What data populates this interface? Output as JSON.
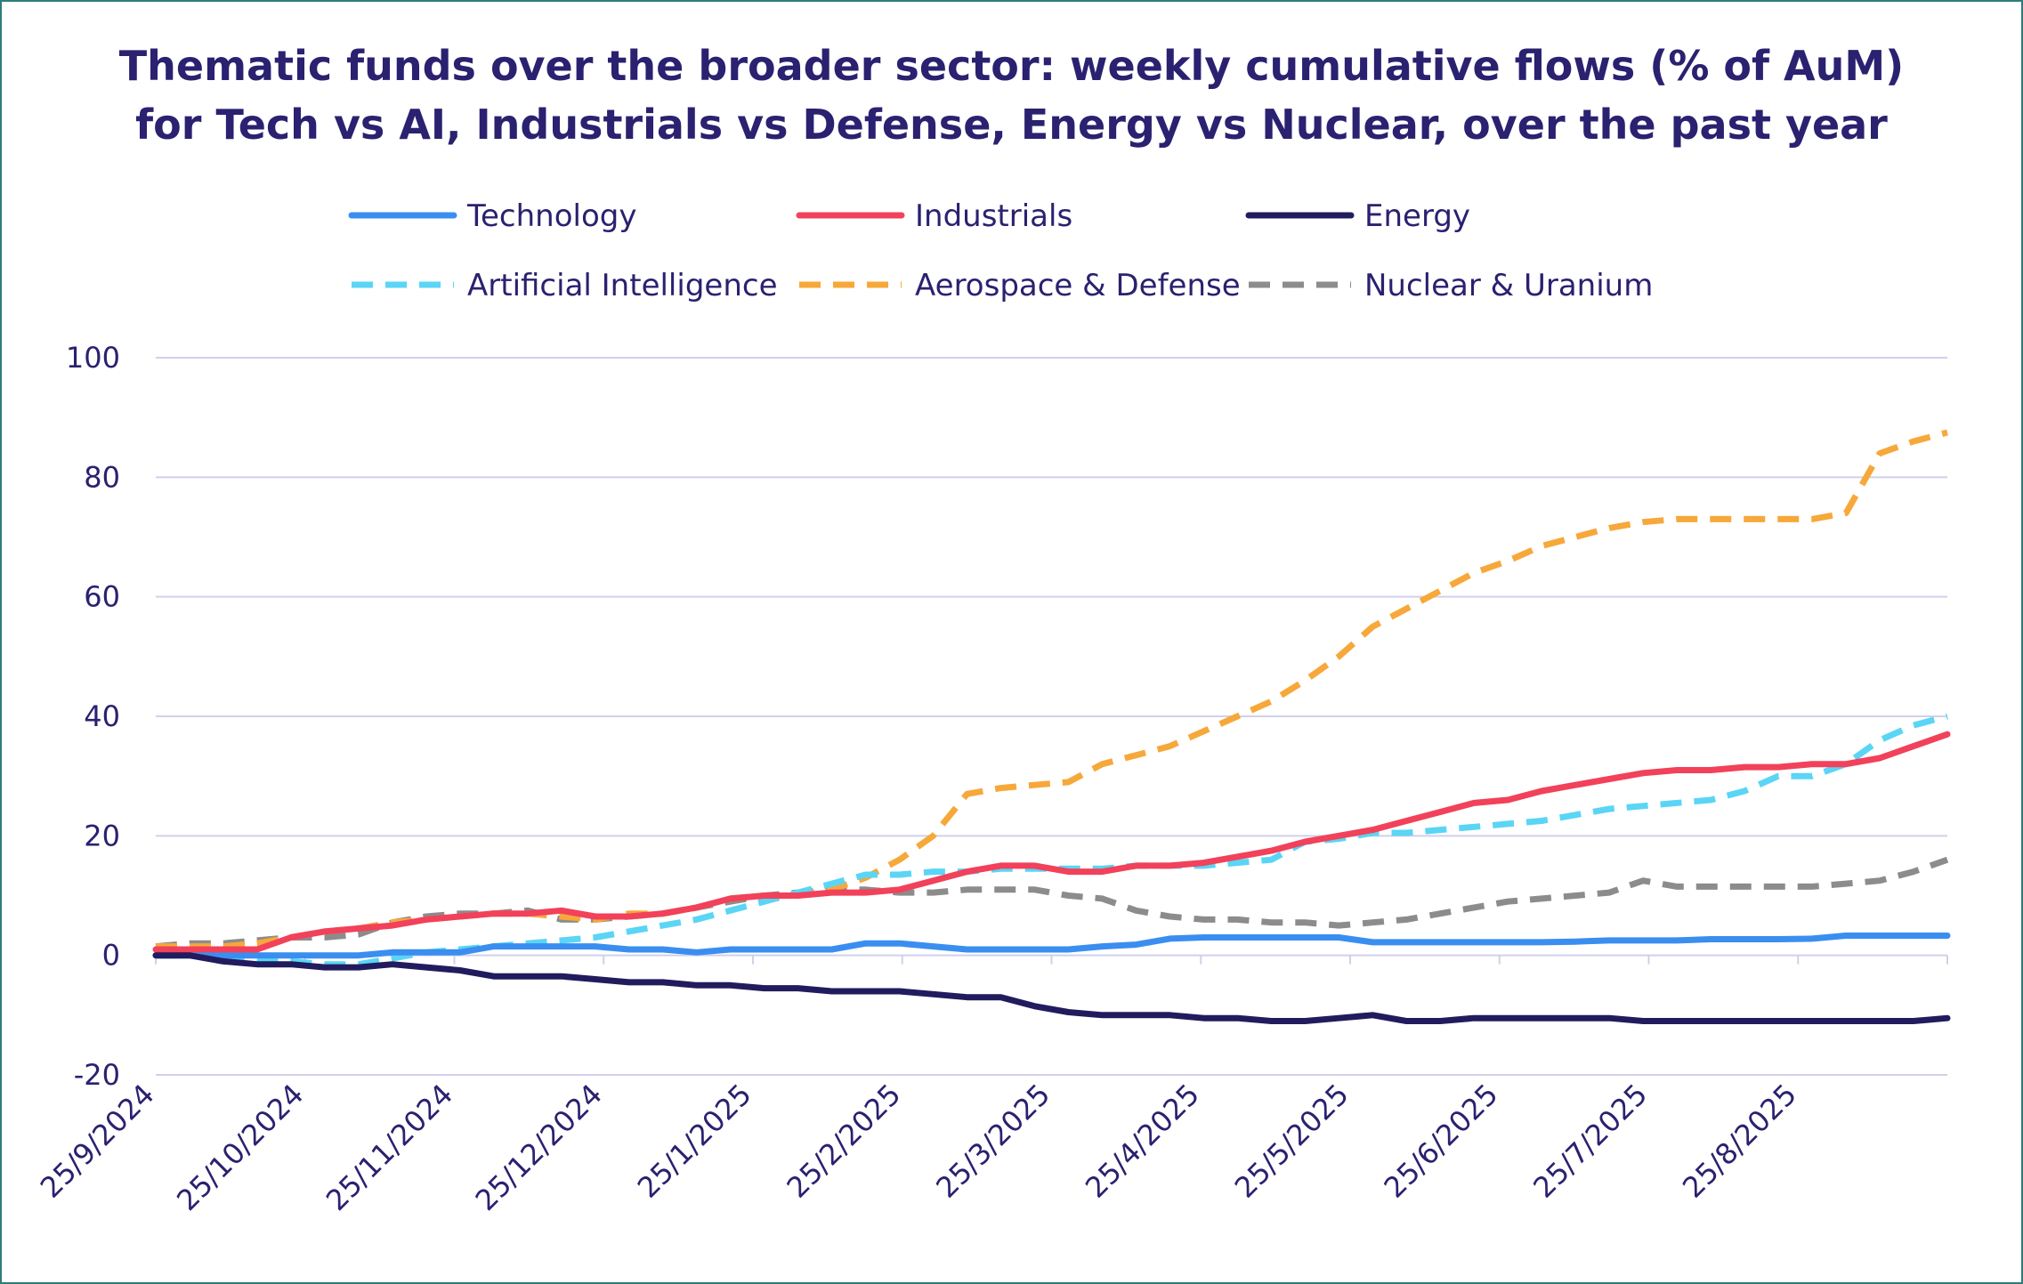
{
  "chart_data": {
    "type": "line",
    "title_line1": "Thematic funds over the broader sector: weekly cumulative flows (% of AuM)",
    "title_line2": "for Tech vs AI, Industrials vs Defense, Energy vs Nuclear, over the past year",
    "x_tick_labels": [
      "25/9/2024",
      "25/10/2024",
      "25/11/2024",
      "25/12/2024",
      "25/1/2025",
      "25/2/2025",
      "25/3/2025",
      "25/4/2025",
      "25/5/2025",
      "25/6/2025",
      "25/7/2025",
      "25/8/2025"
    ],
    "x_range": [
      "25/9/2024",
      "25/9/2025"
    ],
    "ylim": [
      -20,
      100
    ],
    "y_ticks": [
      -20,
      0,
      20,
      40,
      60,
      80,
      100
    ],
    "grid": "horizontal",
    "legend_placement": "top",
    "series": [
      {
        "name": "Technology",
        "color": "#3a8ef0",
        "dash": false,
        "values": [
          0,
          0,
          0,
          0,
          0,
          0,
          0,
          0.5,
          0.5,
          0.5,
          1.5,
          1.5,
          1.5,
          1.5,
          1,
          1,
          0.5,
          1,
          1,
          1,
          1,
          2,
          2,
          1.5,
          1,
          1,
          1,
          1,
          1.5,
          1.8,
          2.8,
          3,
          3,
          3,
          3,
          3,
          2.2,
          2.2,
          2.2,
          2.2,
          2.2,
          2.2,
          2.3,
          2.5,
          2.5,
          2.5,
          2.7,
          2.7,
          2.7,
          2.8,
          3.3,
          3.3,
          3.3,
          3.3
        ]
      },
      {
        "name": "Industrials",
        "color": "#f2415a",
        "dash": false,
        "values": [
          1,
          1,
          1,
          1,
          3,
          4,
          4.5,
          5,
          6,
          6.5,
          7,
          7,
          7.5,
          6.5,
          6.5,
          7,
          8,
          9.5,
          10,
          10,
          10.5,
          10.5,
          11,
          12.5,
          14,
          15,
          15,
          14,
          14,
          15,
          15,
          15.5,
          16.5,
          17.5,
          19,
          20,
          21,
          22.5,
          24,
          25.5,
          26,
          27.5,
          28.5,
          29.5,
          30.5,
          31,
          31,
          31.5,
          31.5,
          32,
          32,
          33,
          35,
          37
        ]
      },
      {
        "name": "Energy",
        "color": "#211c5e",
        "dash": false,
        "values": [
          0,
          0,
          -1,
          -1.5,
          -1.5,
          -2,
          -2,
          -1.5,
          -2,
          -2.5,
          -3.5,
          -3.5,
          -3.5,
          -4,
          -4.5,
          -4.5,
          -5,
          -5,
          -5.5,
          -5.5,
          -6,
          -6,
          -6,
          -6.5,
          -7,
          -7,
          -8.5,
          -9.5,
          -10,
          -10,
          -10,
          -10.5,
          -10.5,
          -11,
          -11,
          -10.5,
          -10,
          -11,
          -11,
          -10.5,
          -10.5,
          -10.5,
          -10.5,
          -10.5,
          -11,
          -11,
          -11,
          -11,
          -11,
          -11,
          -11,
          -11,
          -11,
          -10.5
        ]
      },
      {
        "name": "Artificial Intelligence",
        "color": "#5ad5f5",
        "dash": true,
        "values": [
          0,
          0,
          0,
          -1,
          -1,
          -1.5,
          -1.5,
          -0.5,
          0.5,
          1,
          1.5,
          2,
          2.5,
          3,
          4,
          5,
          6,
          7.5,
          9,
          10.5,
          12,
          13.5,
          13.5,
          14,
          14,
          14.5,
          14.5,
          14.5,
          14.5,
          15,
          15,
          15,
          15.5,
          16,
          19,
          19.5,
          20.5,
          20.5,
          21,
          21.5,
          22,
          22.5,
          23.5,
          24.5,
          25,
          25.5,
          26,
          27.5,
          30,
          30,
          32,
          36,
          38.5,
          40
        ]
      },
      {
        "name": "Aerospace & Defense",
        "color": "#f7a83a",
        "dash": true,
        "values": [
          1.5,
          1.5,
          1.5,
          2,
          3,
          4,
          4.5,
          5.5,
          6,
          6.5,
          7,
          7,
          6.5,
          6,
          7,
          7,
          8,
          9.5,
          10,
          10,
          11,
          13,
          16,
          20,
          27,
          28,
          28.5,
          29,
          32,
          33.5,
          35,
          37.5,
          40,
          42.5,
          46,
          50,
          55,
          58,
          61,
          64,
          66,
          68.5,
          70,
          71.5,
          72.5,
          73,
          73,
          73,
          73,
          73,
          74,
          84,
          86,
          87.5
        ]
      },
      {
        "name": "Nuclear & Uranium",
        "color": "#8c8c8c",
        "dash": true,
        "values": [
          1.5,
          2,
          2,
          2.5,
          3,
          3,
          3.5,
          5.5,
          6.5,
          7,
          7,
          7.5,
          6,
          6,
          6.5,
          7,
          8,
          9,
          10,
          10.5,
          11,
          11,
          10.5,
          10.5,
          11,
          11,
          11,
          10,
          9.5,
          7.5,
          6.5,
          6,
          6,
          5.5,
          5.5,
          5,
          5.5,
          6,
          7,
          8,
          9,
          9.5,
          10,
          10.5,
          12.5,
          11.5,
          11.5,
          11.5,
          11.5,
          11.5,
          12,
          12.5,
          14,
          16
        ]
      }
    ]
  }
}
